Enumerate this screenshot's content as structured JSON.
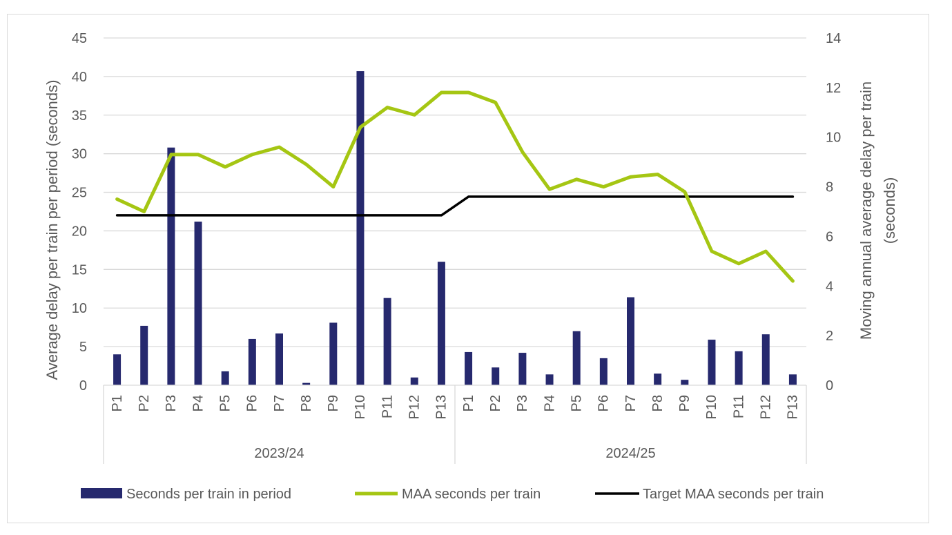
{
  "chart_data": {
    "type": "bar+line",
    "title": "",
    "periods": [
      "P1",
      "P2",
      "P3",
      "P4",
      "P5",
      "P6",
      "P7",
      "P8",
      "P9",
      "P10",
      "P11",
      "P12",
      "P13",
      "P1",
      "P2",
      "P3",
      "P4",
      "P5",
      "P6",
      "P7",
      "P8",
      "P9",
      "P10",
      "P11",
      "P12",
      "P13"
    ],
    "groups": [
      {
        "label": "2023/24",
        "count": 13
      },
      {
        "label": "2024/25",
        "count": 13
      }
    ],
    "ylabel_left": "Average delay per train per period (seconds)",
    "ylabel_right_line1": "Moving annual average delay per train",
    "ylabel_right_line2": "(seconds)",
    "ylim_left": [
      0,
      45
    ],
    "yticks_left": [
      0,
      5,
      10,
      15,
      20,
      25,
      30,
      35,
      40,
      45
    ],
    "ylim_right": [
      0,
      14
    ],
    "yticks_right": [
      0,
      2,
      4,
      6,
      8,
      10,
      12,
      14
    ],
    "grid": true,
    "legend_position": "bottom",
    "series": [
      {
        "name": "Seconds per train in period",
        "kind": "bar",
        "axis": "left",
        "color": "#26296e",
        "values": [
          4.0,
          7.7,
          30.8,
          21.2,
          1.8,
          6.0,
          6.7,
          0.3,
          8.1,
          40.7,
          11.3,
          1.0,
          16.0,
          4.3,
          2.3,
          4.2,
          1.4,
          7.0,
          3.5,
          11.4,
          1.5,
          0.7,
          5.9,
          4.4,
          6.6,
          1.4
        ]
      },
      {
        "name": "MAA seconds per train",
        "kind": "line",
        "axis": "right",
        "color": "#a5c613",
        "values": [
          7.5,
          7.0,
          9.3,
          9.3,
          8.8,
          9.3,
          9.6,
          8.9,
          8.0,
          10.4,
          11.2,
          10.9,
          11.8,
          11.8,
          11.4,
          9.4,
          7.9,
          8.3,
          8.0,
          8.4,
          8.5,
          7.8,
          5.4,
          4.9,
          5.4,
          4.2
        ]
      },
      {
        "name": "Target MAA seconds per train",
        "kind": "line",
        "axis": "right",
        "color": "#000000",
        "values": [
          6.85,
          6.85,
          6.85,
          6.85,
          6.85,
          6.85,
          6.85,
          6.85,
          6.85,
          6.85,
          6.85,
          6.85,
          6.85,
          7.6,
          7.6,
          7.6,
          7.6,
          7.6,
          7.6,
          7.6,
          7.6,
          7.6,
          7.6,
          7.6,
          7.6,
          7.6
        ]
      }
    ]
  }
}
